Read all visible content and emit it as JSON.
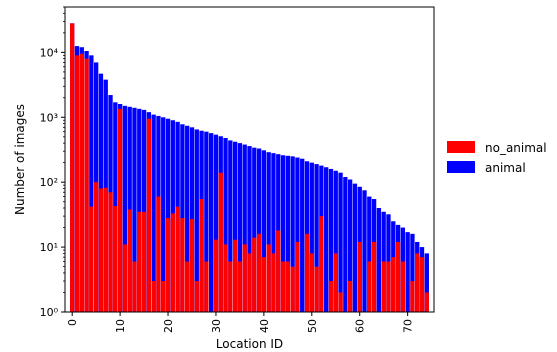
{
  "chart_data": {
    "type": "bar",
    "xlabel": "Location ID",
    "ylabel": "Number of images",
    "yscale": "log",
    "ylim": [
      1,
      50000
    ],
    "xlim": [
      -1.5,
      75.5
    ],
    "grid": false,
    "legend_position": "right",
    "x": [
      0,
      1,
      2,
      3,
      4,
      5,
      6,
      7,
      8,
      9,
      10,
      11,
      12,
      13,
      14,
      15,
      16,
      17,
      18,
      19,
      20,
      21,
      22,
      23,
      24,
      25,
      26,
      27,
      28,
      29,
      30,
      31,
      32,
      33,
      34,
      35,
      36,
      37,
      38,
      39,
      40,
      41,
      42,
      43,
      44,
      45,
      46,
      47,
      48,
      49,
      50,
      51,
      52,
      53,
      54,
      55,
      56,
      57,
      58,
      59,
      60,
      61,
      62,
      63,
      64,
      65,
      66,
      67,
      68,
      69,
      70,
      71,
      72,
      73,
      74
    ],
    "xticks": [
      0,
      10,
      20,
      30,
      40,
      50,
      60,
      70
    ],
    "xtick_labels": [
      "0",
      "10",
      "20",
      "30",
      "40",
      "50",
      "60",
      "70"
    ],
    "yticks": [
      1,
      10,
      100,
      1000,
      10000
    ],
    "ytick_labels": [
      "10⁰",
      "10¹",
      "10²",
      "10³",
      "10⁴"
    ],
    "series": [
      {
        "name": "animal",
        "color": "#0000ff",
        "values": [
          28000,
          12500,
          12000,
          10500,
          9000,
          7000,
          4700,
          3800,
          2200,
          1700,
          1600,
          1500,
          1450,
          1400,
          1350,
          1300,
          1200,
          1100,
          1050,
          1000,
          950,
          900,
          850,
          780,
          740,
          700,
          650,
          620,
          600,
          570,
          540,
          510,
          480,
          440,
          420,
          400,
          380,
          360,
          340,
          330,
          310,
          290,
          280,
          270,
          260,
          255,
          250,
          240,
          230,
          210,
          200,
          190,
          180,
          170,
          160,
          150,
          140,
          120,
          110,
          95,
          85,
          75,
          60,
          55,
          40,
          35,
          32,
          25,
          22,
          20,
          17,
          16,
          12,
          10,
          8
        ]
      },
      {
        "name": "no_animal",
        "color": "#ff0000",
        "values": [
          28000,
          9000,
          9500,
          8000,
          42,
          100,
          80,
          82,
          70,
          43,
          1350,
          11,
          38,
          6,
          35,
          35,
          950,
          3,
          60,
          3,
          28,
          33,
          42,
          28,
          6,
          27,
          3,
          55,
          6,
          1,
          13,
          140,
          11,
          6,
          13,
          6,
          11,
          8,
          14,
          16,
          7,
          11,
          8,
          18,
          6,
          6,
          5,
          12,
          1,
          16,
          8,
          5,
          30,
          1,
          3,
          8,
          2,
          1,
          3,
          1,
          12,
          1,
          6,
          12,
          1,
          6,
          6,
          7,
          12,
          6,
          1,
          3,
          8,
          7,
          2
        ]
      }
    ]
  },
  "legend": {
    "items": [
      {
        "label": "no_animal",
        "color": "#ff0000"
      },
      {
        "label": "animal",
        "color": "#0000ff"
      }
    ]
  }
}
